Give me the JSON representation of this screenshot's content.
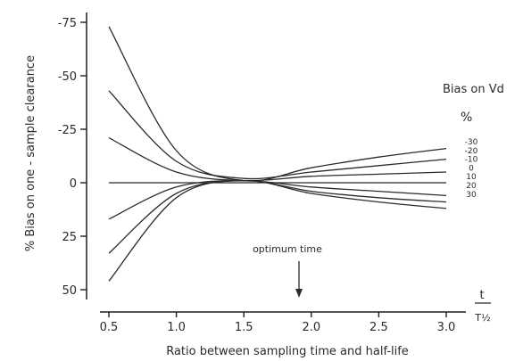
{
  "chart_data": {
    "type": "line",
    "title": "",
    "xlabel": "Ratio between sampling time and half-life",
    "ylabel": "% Bias on one - sample clearance",
    "x_unit_label": {
      "numerator": "t",
      "denominator": "T½"
    },
    "xlim": [
      0.5,
      3.0
    ],
    "ylim": [
      -75,
      50
    ],
    "y_inverted": true,
    "x_ticks": [
      "0.5",
      "1.0",
      "1.5",
      "2.0",
      "2.5",
      "3.0"
    ],
    "x_tick_values": [
      0.5,
      1.0,
      1.5,
      2.0,
      2.5,
      3.0
    ],
    "y_ticks": [
      "-75",
      "-50",
      "-25",
      "0",
      "25",
      "50"
    ],
    "y_tick_values": [
      -75,
      -50,
      -25,
      0,
      25,
      50
    ],
    "grid": false,
    "legend": {
      "title": "Bias on Vd",
      "unit": "%"
    },
    "annotation": {
      "text": "optimum time",
      "x": 1.82
    },
    "x": [
      0.5,
      1.0,
      1.5,
      2.0,
      2.5,
      3.0
    ],
    "series": [
      {
        "name": "-30",
        "values": [
          -73,
          -15,
          -1,
          -7,
          -12,
          -16
        ]
      },
      {
        "name": "-20",
        "values": [
          -43,
          -10,
          -2,
          -5,
          -8,
          -11
        ]
      },
      {
        "name": "-10",
        "values": [
          -21,
          -5,
          -1,
          -3,
          -4,
          -5
        ]
      },
      {
        "name": "0",
        "values": [
          0,
          0,
          0,
          0,
          0,
          0
        ]
      },
      {
        "name": "10",
        "values": [
          17,
          2,
          -1,
          2,
          4,
          6
        ]
      },
      {
        "name": "20",
        "values": [
          33,
          5,
          -1,
          4,
          7,
          9
        ]
      },
      {
        "name": "30",
        "values": [
          46,
          7,
          -1,
          5,
          9,
          12
        ]
      }
    ]
  }
}
